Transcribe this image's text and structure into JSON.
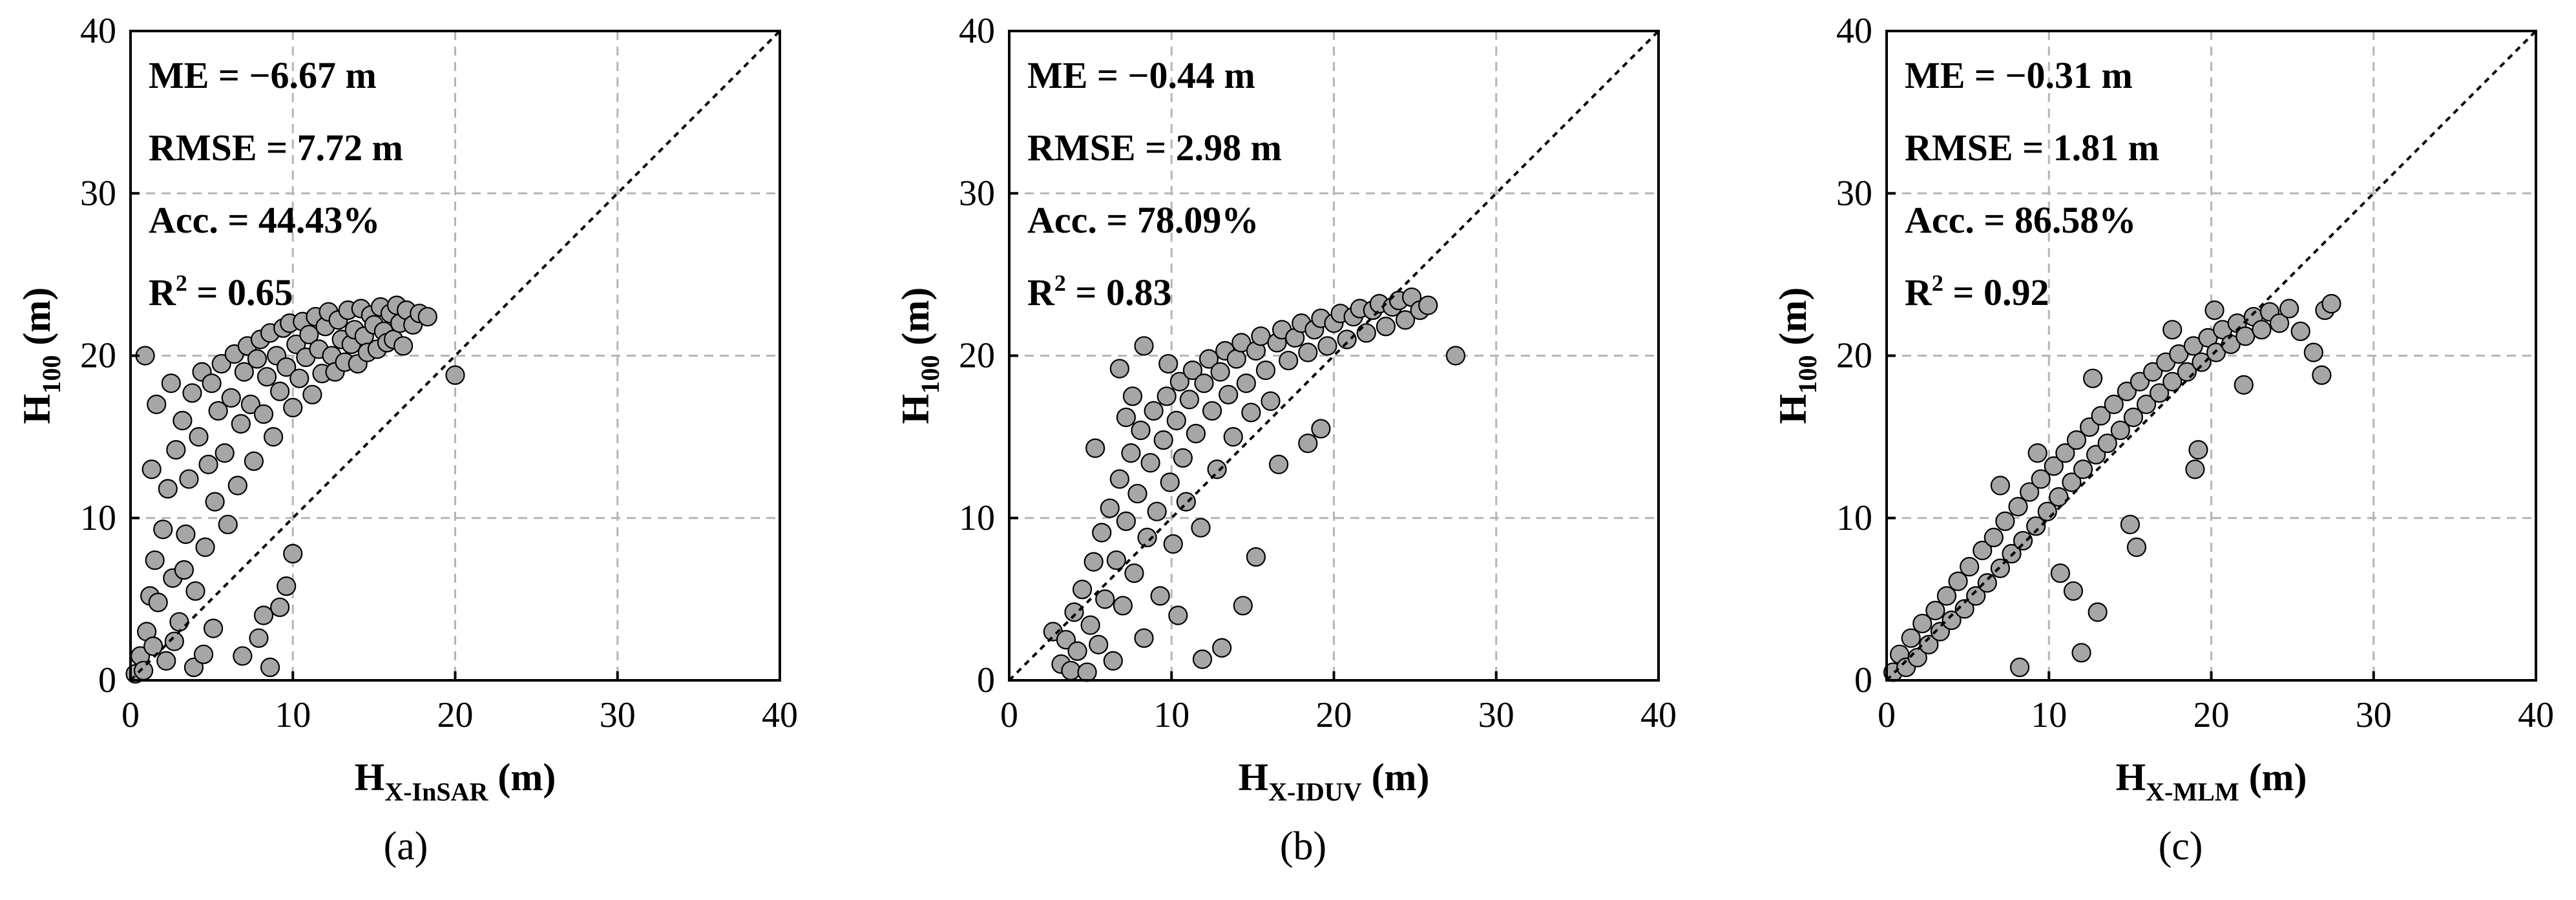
{
  "chart_data": [
    {
      "type": "scatter",
      "panel_label": "a",
      "stats": [
        "ME = −6.67 m",
        "RMSE = 7.72 m",
        "Acc. = 44.43%"
      ],
      "r2": {
        "prefix": "R",
        "sup": "2",
        "suffix": " = 0.65"
      },
      "xlabel": {
        "main": "H",
        "sub": "X-InSAR",
        "unit": " (m)"
      },
      "ylabel": {
        "main": "H",
        "sub": "100",
        "unit": " (m)"
      },
      "xlim": [
        0,
        40
      ],
      "ylim": [
        0,
        40
      ],
      "xticks": [
        "0",
        "10",
        "20",
        "30",
        "40"
      ],
      "yticks": [
        "0",
        "10",
        "20",
        "30",
        "40"
      ],
      "grid": true,
      "reference_line": "1:1",
      "points": [
        [
          0.3,
          0.4
        ],
        [
          0.6,
          1.5
        ],
        [
          0.8,
          0.6
        ],
        [
          1.0,
          3.0
        ],
        [
          1.2,
          5.2
        ],
        [
          1.4,
          2.1
        ],
        [
          1.5,
          7.4
        ],
        [
          1.7,
          4.8
        ],
        [
          2.0,
          9.3
        ],
        [
          2.2,
          1.2
        ],
        [
          2.3,
          11.8
        ],
        [
          2.6,
          6.3
        ],
        [
          2.8,
          14.2
        ],
        [
          3.0,
          3.6
        ],
        [
          3.2,
          16.0
        ],
        [
          3.4,
          9.0
        ],
        [
          3.6,
          12.4
        ],
        [
          3.8,
          17.7
        ],
        [
          4.0,
          5.5
        ],
        [
          4.2,
          15.0
        ],
        [
          4.4,
          19.0
        ],
        [
          4.6,
          8.2
        ],
        [
          4.8,
          13.3
        ],
        [
          5.0,
          18.3
        ],
        [
          5.2,
          11.0
        ],
        [
          5.4,
          16.6
        ],
        [
          5.6,
          19.5
        ],
        [
          5.8,
          14.0
        ],
        [
          6.0,
          9.6
        ],
        [
          6.2,
          17.4
        ],
        [
          6.4,
          20.1
        ],
        [
          6.6,
          12.0
        ],
        [
          6.8,
          15.8
        ],
        [
          7.0,
          19.0
        ],
        [
          7.2,
          20.6
        ],
        [
          7.4,
          17.0
        ],
        [
          7.6,
          13.5
        ],
        [
          7.8,
          19.8
        ],
        [
          8.0,
          21.0
        ],
        [
          8.2,
          16.4
        ],
        [
          8.4,
          18.7
        ],
        [
          8.6,
          21.4
        ],
        [
          8.8,
          15.0
        ],
        [
          9.0,
          20.0
        ],
        [
          9.2,
          17.8
        ],
        [
          9.4,
          21.7
        ],
        [
          9.6,
          19.3
        ],
        [
          9.8,
          22.0
        ],
        [
          10.0,
          16.8
        ],
        [
          10.2,
          20.7
        ],
        [
          10.4,
          18.6
        ],
        [
          10.6,
          22.1
        ],
        [
          10.8,
          19.9
        ],
        [
          11.0,
          21.3
        ],
        [
          11.2,
          17.6
        ],
        [
          11.4,
          22.4
        ],
        [
          11.6,
          20.4
        ],
        [
          11.8,
          18.9
        ],
        [
          12.0,
          21.8
        ],
        [
          12.2,
          22.7
        ],
        [
          12.4,
          20.0
        ],
        [
          12.6,
          19.0
        ],
        [
          12.8,
          22.2
        ],
        [
          13.0,
          21.0
        ],
        [
          13.2,
          19.6
        ],
        [
          13.4,
          22.8
        ],
        [
          13.6,
          20.7
        ],
        [
          13.8,
          21.6
        ],
        [
          14.0,
          19.5
        ],
        [
          14.2,
          22.9
        ],
        [
          14.4,
          21.2
        ],
        [
          14.6,
          20.2
        ],
        [
          14.8,
          22.5
        ],
        [
          15.0,
          21.9
        ],
        [
          15.2,
          20.4
        ],
        [
          15.4,
          23.0
        ],
        [
          15.6,
          21.5
        ],
        [
          15.8,
          20.8
        ],
        [
          16.0,
          22.6
        ],
        [
          16.2,
          21.0
        ],
        [
          16.4,
          23.1
        ],
        [
          16.6,
          22.0
        ],
        [
          16.8,
          20.6
        ],
        [
          17.0,
          22.8
        ],
        [
          17.4,
          21.9
        ],
        [
          17.8,
          22.6
        ],
        [
          18.3,
          22.4
        ],
        [
          20.0,
          18.8
        ],
        [
          0.9,
          20.0
        ],
        [
          1.6,
          17.0
        ],
        [
          2.5,
          18.3
        ],
        [
          1.3,
          13.0
        ],
        [
          8.6,
          0.8
        ],
        [
          7.9,
          2.6
        ],
        [
          9.2,
          4.5
        ],
        [
          9.6,
          5.8
        ],
        [
          10.0,
          7.8
        ],
        [
          8.2,
          4.0
        ],
        [
          6.9,
          1.5
        ],
        [
          5.1,
          3.2
        ],
        [
          3.9,
          0.8
        ],
        [
          2.7,
          2.4
        ],
        [
          4.5,
          1.6
        ],
        [
          3.3,
          6.8
        ]
      ]
    },
    {
      "type": "scatter",
      "panel_label": "b",
      "stats": [
        "ME = −0.44 m",
        "RMSE = 2.98 m",
        "Acc. = 78.09%"
      ],
      "r2": {
        "prefix": "R",
        "sup": "2",
        "suffix": " = 0.83"
      },
      "xlabel": {
        "main": "H",
        "sub": "X-IDUV",
        "unit": " (m)"
      },
      "ylabel": {
        "main": "H",
        "sub": "100",
        "unit": " (m)"
      },
      "xlim": [
        0,
        40
      ],
      "ylim": [
        0,
        40
      ],
      "xticks": [
        "0",
        "10",
        "20",
        "30",
        "40"
      ],
      "yticks": [
        "0",
        "10",
        "20",
        "30",
        "40"
      ],
      "grid": true,
      "reference_line": "1:1",
      "points": [
        [
          2.7,
          3.0
        ],
        [
          3.2,
          1.0
        ],
        [
          3.5,
          2.5
        ],
        [
          3.8,
          0.6
        ],
        [
          4.0,
          4.2
        ],
        [
          4.2,
          1.8
        ],
        [
          4.5,
          5.6
        ],
        [
          4.8,
          0.5
        ],
        [
          5.0,
          3.4
        ],
        [
          5.2,
          7.3
        ],
        [
          5.5,
          2.2
        ],
        [
          5.7,
          9.1
        ],
        [
          5.9,
          5.0
        ],
        [
          6.2,
          10.6
        ],
        [
          6.4,
          1.2
        ],
        [
          6.6,
          7.4
        ],
        [
          6.8,
          12.4
        ],
        [
          7.0,
          4.6
        ],
        [
          7.2,
          9.8
        ],
        [
          7.5,
          14.0
        ],
        [
          7.7,
          6.6
        ],
        [
          7.9,
          11.5
        ],
        [
          8.1,
          15.4
        ],
        [
          8.3,
          2.6
        ],
        [
          8.5,
          8.8
        ],
        [
          8.7,
          13.4
        ],
        [
          8.9,
          16.6
        ],
        [
          9.1,
          10.4
        ],
        [
          9.3,
          5.2
        ],
        [
          9.5,
          14.8
        ],
        [
          9.7,
          17.5
        ],
        [
          9.9,
          12.2
        ],
        [
          10.1,
          8.4
        ],
        [
          10.3,
          16.0
        ],
        [
          10.5,
          18.4
        ],
        [
          10.7,
          13.7
        ],
        [
          10.9,
          11.0
        ],
        [
          11.1,
          17.3
        ],
        [
          11.3,
          19.1
        ],
        [
          11.5,
          15.2
        ],
        [
          11.8,
          9.4
        ],
        [
          12.0,
          18.3
        ],
        [
          12.3,
          19.8
        ],
        [
          12.5,
          16.6
        ],
        [
          12.8,
          13.0
        ],
        [
          13.0,
          19.0
        ],
        [
          13.3,
          20.3
        ],
        [
          13.5,
          17.6
        ],
        [
          13.8,
          15.0
        ],
        [
          14.0,
          19.8
        ],
        [
          14.3,
          20.8
        ],
        [
          14.6,
          18.3
        ],
        [
          14.9,
          16.5
        ],
        [
          15.2,
          20.3
        ],
        [
          15.5,
          21.2
        ],
        [
          15.8,
          19.1
        ],
        [
          16.1,
          17.2
        ],
        [
          16.5,
          20.8
        ],
        [
          16.8,
          21.6
        ],
        [
          17.2,
          19.7
        ],
        [
          17.6,
          21.1
        ],
        [
          18.0,
          22.0
        ],
        [
          18.4,
          20.2
        ],
        [
          18.8,
          21.6
        ],
        [
          19.2,
          22.3
        ],
        [
          19.6,
          20.6
        ],
        [
          20.0,
          22.0
        ],
        [
          20.4,
          22.6
        ],
        [
          20.8,
          21.0
        ],
        [
          21.2,
          22.4
        ],
        [
          21.6,
          22.9
        ],
        [
          22.0,
          21.4
        ],
        [
          22.4,
          22.8
        ],
        [
          22.8,
          23.2
        ],
        [
          23.2,
          21.8
        ],
        [
          23.6,
          23.0
        ],
        [
          24.0,
          23.4
        ],
        [
          24.4,
          22.2
        ],
        [
          24.8,
          23.6
        ],
        [
          25.3,
          22.8
        ],
        [
          25.8,
          23.1
        ],
        [
          27.5,
          20.0
        ],
        [
          15.2,
          7.6
        ],
        [
          14.4,
          4.6
        ],
        [
          13.1,
          2.0
        ],
        [
          11.9,
          1.3
        ],
        [
          10.4,
          4.0
        ],
        [
          6.8,
          19.2
        ],
        [
          8.3,
          20.6
        ],
        [
          7.6,
          17.5
        ],
        [
          9.8,
          19.5
        ],
        [
          5.3,
          14.3
        ],
        [
          7.2,
          16.2
        ],
        [
          18.4,
          14.6
        ],
        [
          16.6,
          13.3
        ],
        [
          19.2,
          15.5
        ]
      ]
    },
    {
      "type": "scatter",
      "panel_label": "c",
      "stats": [
        "ME = −0.31 m",
        "RMSE = 1.81 m",
        "Acc. = 86.58%"
      ],
      "r2": {
        "prefix": "R",
        "sup": "2",
        "suffix": " = 0.92"
      },
      "xlabel": {
        "main": "H",
        "sub": "X-MLM",
        "unit": " (m)"
      },
      "ylabel": {
        "main": "H",
        "sub": "100",
        "unit": " (m)"
      },
      "xlim": [
        0,
        40
      ],
      "ylim": [
        0,
        40
      ],
      "xticks": [
        "0",
        "10",
        "20",
        "30",
        "40"
      ],
      "yticks": [
        "0",
        "10",
        "20",
        "30",
        "40"
      ],
      "grid": true,
      "reference_line": "1:1",
      "points": [
        [
          0.4,
          0.5
        ],
        [
          0.8,
          1.6
        ],
        [
          1.2,
          0.8
        ],
        [
          1.5,
          2.6
        ],
        [
          1.9,
          1.4
        ],
        [
          2.2,
          3.5
        ],
        [
          2.6,
          2.2
        ],
        [
          3.0,
          4.3
        ],
        [
          3.3,
          3.0
        ],
        [
          3.7,
          5.2
        ],
        [
          4.0,
          3.7
        ],
        [
          4.4,
          6.1
        ],
        [
          4.8,
          4.4
        ],
        [
          5.1,
          7.0
        ],
        [
          5.5,
          5.2
        ],
        [
          5.9,
          8.0
        ],
        [
          6.2,
          6.0
        ],
        [
          6.6,
          8.8
        ],
        [
          7.0,
          6.9
        ],
        [
          7.3,
          9.8
        ],
        [
          7.7,
          7.8
        ],
        [
          8.1,
          10.7
        ],
        [
          8.4,
          8.6
        ],
        [
          8.8,
          11.6
        ],
        [
          9.2,
          9.5
        ],
        [
          9.5,
          12.4
        ],
        [
          9.9,
          10.4
        ],
        [
          10.3,
          13.2
        ],
        [
          10.6,
          11.3
        ],
        [
          11.0,
          14.0
        ],
        [
          11.4,
          12.2
        ],
        [
          11.7,
          14.8
        ],
        [
          12.1,
          13.0
        ],
        [
          12.5,
          15.6
        ],
        [
          12.9,
          13.9
        ],
        [
          13.2,
          16.3
        ],
        [
          13.6,
          14.6
        ],
        [
          14.0,
          17.0
        ],
        [
          14.4,
          15.4
        ],
        [
          14.8,
          17.8
        ],
        [
          15.2,
          16.2
        ],
        [
          15.6,
          18.4
        ],
        [
          16.0,
          17.0
        ],
        [
          16.4,
          19.0
        ],
        [
          16.8,
          17.7
        ],
        [
          17.2,
          19.6
        ],
        [
          17.6,
          18.4
        ],
        [
          18.0,
          20.1
        ],
        [
          18.5,
          19.0
        ],
        [
          18.9,
          20.6
        ],
        [
          19.4,
          19.6
        ],
        [
          19.8,
          21.1
        ],
        [
          20.3,
          20.2
        ],
        [
          20.7,
          21.6
        ],
        [
          21.2,
          20.7
        ],
        [
          21.6,
          22.0
        ],
        [
          22.1,
          21.2
        ],
        [
          22.6,
          22.4
        ],
        [
          23.1,
          21.6
        ],
        [
          23.6,
          22.7
        ],
        [
          24.2,
          22.0
        ],
        [
          24.8,
          22.9
        ],
        [
          25.5,
          21.5
        ],
        [
          26.3,
          20.2
        ],
        [
          27.0,
          22.8
        ],
        [
          27.4,
          23.2
        ],
        [
          26.8,
          18.8
        ],
        [
          19.2,
          14.2
        ],
        [
          19.0,
          13.0
        ],
        [
          15.4,
          8.2
        ],
        [
          13.0,
          4.2
        ],
        [
          12.0,
          1.7
        ],
        [
          11.5,
          5.5
        ],
        [
          8.2,
          0.8
        ],
        [
          15.0,
          9.6
        ],
        [
          10.7,
          6.6
        ],
        [
          7.0,
          12.0
        ],
        [
          9.3,
          14.0
        ],
        [
          12.7,
          18.6
        ],
        [
          17.6,
          21.6
        ],
        [
          20.2,
          22.8
        ],
        [
          22.0,
          18.2
        ]
      ]
    }
  ]
}
